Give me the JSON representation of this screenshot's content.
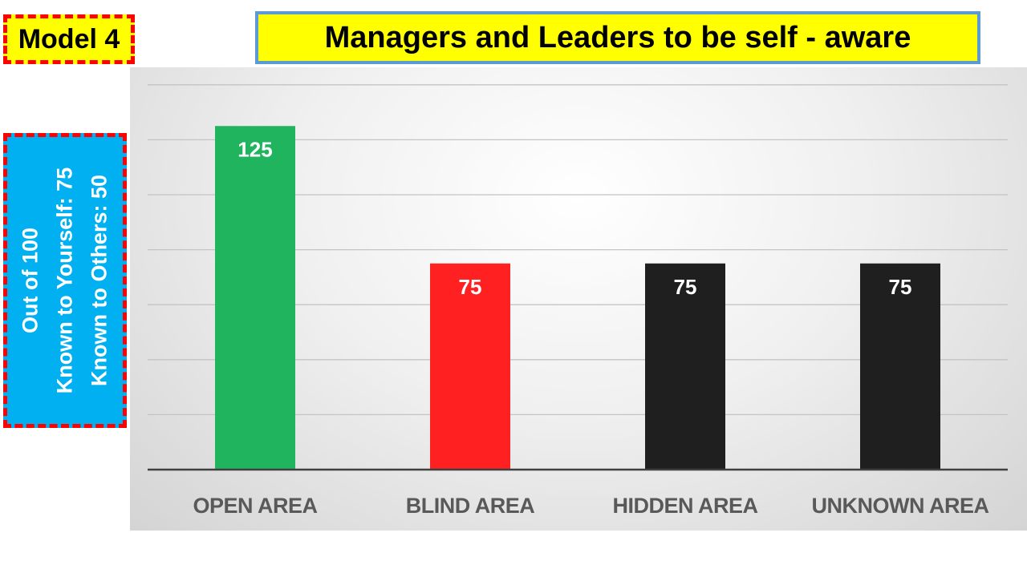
{
  "model_label": "Model 4",
  "side_note": {
    "lines": [
      "Out of 100",
      "Known to Yourself: 75",
      "Known to Others: 50"
    ]
  },
  "chart_data": {
    "type": "bar",
    "title": "Managers and Leaders to be self - aware",
    "xlabel": "",
    "ylabel": "",
    "categories": [
      "OPEN AREA",
      "BLIND AREA",
      "HIDDEN AREA",
      "UNKNOWN AREA"
    ],
    "values": [
      125,
      75,
      75,
      75
    ],
    "data_labels": [
      "125",
      "75",
      "75",
      "75"
    ],
    "colors": [
      "#21b45f",
      "#ff2121",
      "#1f1f1f",
      "#1f1f1f"
    ],
    "ylim": [
      0,
      140
    ],
    "grid": true,
    "legend": "none"
  },
  "colors": {
    "highlight_yellow": "#ffff00",
    "accent_blue": "#00b0f0",
    "border_red": "#ff0000",
    "title_border": "#5b9bd5"
  }
}
